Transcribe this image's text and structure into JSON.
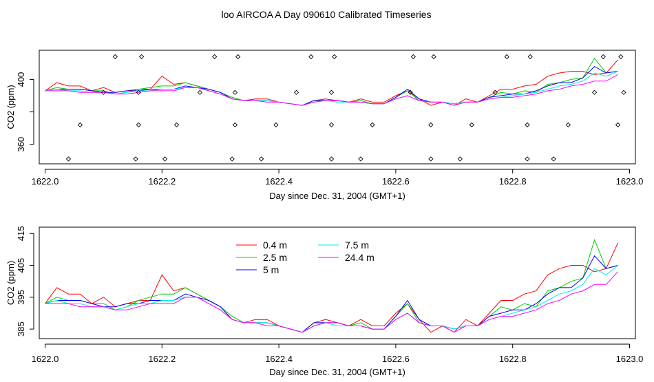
{
  "page": {
    "title": "loo AIRCOA A  Day 090610  Calibrated Timeseries"
  },
  "colors": {
    "0.4 m": "#ff0000",
    "2.5 m": "#00cd00",
    "5 m": "#0000ff",
    "7.5 m": "#00eeee",
    "24.4 m": "#ff00ff",
    "axis": "#000000"
  },
  "chart_data": [
    {
      "id": "top",
      "type": "line",
      "title": "",
      "xlabel": "Day since Dec. 31, 2004 (GMT+1)",
      "ylabel": "CO2 (ppm)",
      "xlim": [
        1621.99,
        1623.01
      ],
      "ylim": [
        348,
        418
      ],
      "xticks": [
        1622.0,
        1622.2,
        1622.4,
        1622.6,
        1622.8,
        1623.0
      ],
      "xtick_labels": [
        "1622.0",
        "1622.2",
        "1622.4",
        "1622.6",
        "1622.8",
        "1623.0"
      ],
      "yticks": [
        360,
        380,
        400
      ],
      "ytick_labels": [
        "360",
        "",
        "400"
      ],
      "grid": false,
      "legend": null,
      "x": [
        1622.0,
        1622.02,
        1622.04,
        1622.06,
        1622.08,
        1622.1,
        1622.12,
        1622.14,
        1622.16,
        1622.18,
        1622.2,
        1622.22,
        1622.24,
        1622.26,
        1622.28,
        1622.3,
        1622.32,
        1622.34,
        1622.36,
        1622.38,
        1622.4,
        1622.42,
        1622.44,
        1622.46,
        1622.48,
        1622.5,
        1622.52,
        1622.54,
        1622.56,
        1622.58,
        1622.6,
        1622.62,
        1622.64,
        1622.66,
        1622.68,
        1622.7,
        1622.72,
        1622.74,
        1622.76,
        1622.78,
        1622.8,
        1622.82,
        1622.84,
        1622.86,
        1622.88,
        1622.9,
        1622.92,
        1622.94,
        1622.96,
        1622.98
      ],
      "series": [
        {
          "name": "0.4 m",
          "values": [
            393,
            398,
            396,
            396,
            393,
            395,
            392,
            393,
            394,
            394,
            402,
            397,
            398,
            396,
            394,
            392,
            388,
            387,
            388,
            388,
            386,
            385,
            384,
            387,
            388,
            387,
            386,
            388,
            386,
            386,
            390,
            393,
            388,
            384,
            386,
            384,
            388,
            386,
            390,
            394,
            394,
            396,
            397,
            402,
            404,
            405,
            405,
            403,
            404,
            412
          ]
        },
        {
          "name": "2.5 m",
          "values": [
            393,
            395,
            394,
            394,
            393,
            393,
            391,
            392,
            394,
            395,
            396,
            396,
            398,
            396,
            394,
            392,
            389,
            387,
            387,
            387,
            386,
            385,
            384,
            387,
            387,
            387,
            386,
            387,
            385,
            385,
            389,
            393,
            387,
            386,
            386,
            385,
            386,
            386,
            389,
            392,
            391,
            393,
            392,
            397,
            398,
            400,
            401,
            413,
            404,
            405
          ]
        },
        {
          "name": "5 m",
          "values": [
            393,
            394,
            394,
            394,
            393,
            392,
            392,
            393,
            393,
            394,
            394,
            394,
            396,
            395,
            394,
            392,
            388,
            387,
            387,
            387,
            386,
            385,
            384,
            387,
            387,
            387,
            386,
            386,
            385,
            385,
            389,
            394,
            388,
            386,
            386,
            385,
            386,
            386,
            389,
            390,
            391,
            391,
            393,
            396,
            398,
            398,
            401,
            408,
            404,
            405
          ]
        },
        {
          "name": "7.5 m",
          "values": [
            393,
            394,
            393,
            393,
            392,
            392,
            391,
            392,
            393,
            393,
            394,
            394,
            395,
            395,
            393,
            391,
            388,
            387,
            387,
            387,
            386,
            385,
            384,
            386,
            387,
            386,
            386,
            386,
            385,
            385,
            388,
            390,
            387,
            386,
            386,
            385,
            386,
            386,
            388,
            389,
            390,
            391,
            392,
            394,
            396,
            397,
            399,
            404,
            402,
            405
          ]
        },
        {
          "name": "24.4 m",
          "values": [
            393,
            393,
            393,
            392,
            392,
            392,
            391,
            391,
            392,
            393,
            393,
            393,
            395,
            395,
            393,
            391,
            388,
            387,
            387,
            386,
            386,
            385,
            384,
            386,
            387,
            387,
            386,
            386,
            385,
            385,
            388,
            390,
            387,
            386,
            386,
            384,
            386,
            386,
            388,
            389,
            389,
            390,
            391,
            393,
            394,
            396,
            397,
            399,
            399,
            403
          ]
        }
      ],
      "markers": {
        "x": [
          1622.04,
          1622.06,
          1622.1,
          1622.12,
          1622.155,
          1622.16,
          1622.16,
          1622.165,
          1622.205,
          1622.225,
          1622.265,
          1622.29,
          1622.32,
          1622.325,
          1622.325,
          1622.33,
          1622.37,
          1622.395,
          1622.43,
          1622.455,
          1622.49,
          1622.49,
          1622.49,
          1622.495,
          1622.54,
          1622.56,
          1622.625,
          1622.63,
          1622.66,
          1622.66,
          1622.665,
          1622.71,
          1622.73,
          1622.77,
          1622.79,
          1622.825,
          1622.825,
          1622.83,
          1622.87,
          1622.895,
          1622.94,
          1622.955,
          1622.98,
          1622.985,
          1622.99
        ],
        "y": [
          351,
          372,
          392,
          414,
          351,
          372,
          392,
          414,
          351,
          372,
          392,
          414,
          351,
          372,
          392,
          414,
          351,
          372,
          392,
          414,
          351,
          372,
          392,
          414,
          351,
          372,
          392,
          414,
          351,
          372,
          414,
          351,
          372,
          392,
          414,
          351,
          372,
          414,
          351,
          372,
          392,
          414,
          372,
          414,
          392
        ]
      }
    },
    {
      "id": "bottom",
      "type": "line",
      "title": "",
      "xlabel": "Day since Dec. 31, 2004 (GMT+1)",
      "ylabel": "CO2 (ppm)",
      "xlim": [
        1621.99,
        1623.01
      ],
      "ylim": [
        382,
        417
      ],
      "xticks": [
        1622.0,
        1622.2,
        1622.4,
        1622.6,
        1622.8,
        1623.0
      ],
      "xtick_labels": [
        "1622.0",
        "1622.2",
        "1622.4",
        "1622.6",
        "1622.8",
        "1623.0"
      ],
      "yticks": [
        385,
        395,
        405,
        415
      ],
      "ytick_labels": [
        "385",
        "395",
        "405",
        "415"
      ],
      "grid": false,
      "legend": "top-center",
      "series_ref": "top"
    }
  ]
}
